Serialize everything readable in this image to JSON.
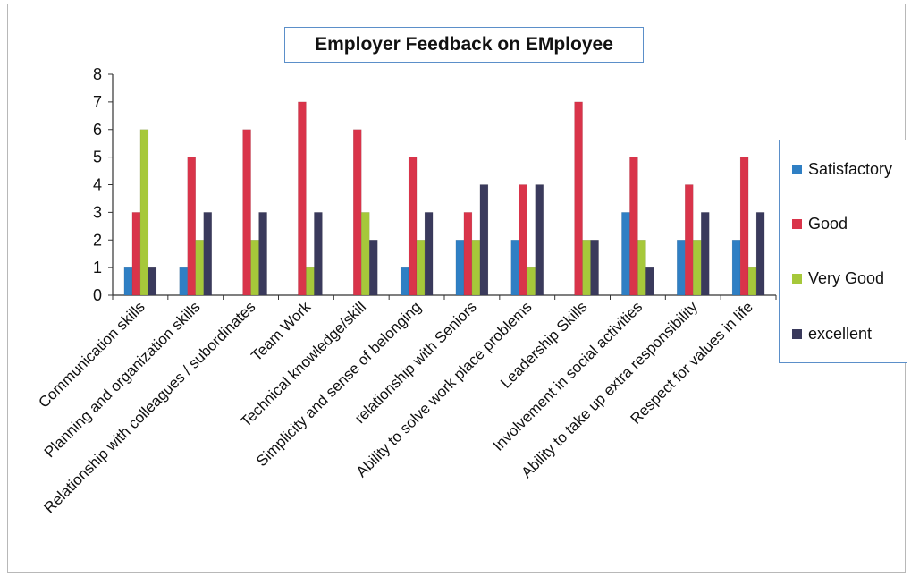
{
  "chart_data": {
    "type": "bar",
    "title": "Employer Feedback on EMployee",
    "categories": [
      "Communication skills",
      "Planning and organization skills",
      "Relationship with colleagues / subordinates",
      "Team Work",
      "Technical knowledge/skill",
      "Simplicity and sense of belonging",
      "relationship with Seniors",
      "Ability to solve work place problems",
      "Leadership Skills",
      "Involvement in social activities",
      "Ability to take up extra responsibility",
      "Respect for values in life"
    ],
    "series": [
      {
        "name": "Satisfactory",
        "color": "#2f7fc4",
        "values": [
          1,
          1,
          0,
          0,
          0,
          1,
          2,
          2,
          0,
          3,
          2,
          2
        ]
      },
      {
        "name": "Good",
        "color": "#d9344a",
        "values": [
          3,
          5,
          6,
          7,
          6,
          5,
          3,
          4,
          7,
          5,
          4,
          5
        ]
      },
      {
        "name": "Very Good",
        "color": "#a6c83a",
        "values": [
          6,
          2,
          2,
          1,
          3,
          2,
          2,
          1,
          2,
          2,
          2,
          1
        ]
      },
      {
        "name": "excellent",
        "color": "#3a3a5c",
        "values": [
          1,
          3,
          3,
          3,
          2,
          3,
          4,
          4,
          2,
          1,
          3,
          3
        ]
      }
    ],
    "ylim": [
      0,
      8
    ],
    "yticks": [
      0,
      1,
      2,
      3,
      4,
      5,
      6,
      7,
      8
    ],
    "xlabel": "",
    "ylabel": "",
    "grid": false,
    "legend": "right"
  }
}
